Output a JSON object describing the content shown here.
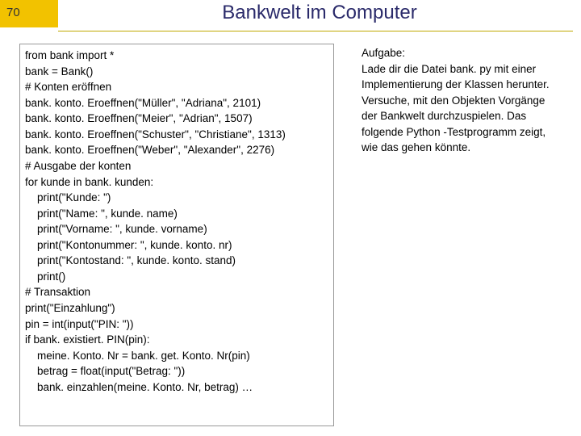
{
  "slide": {
    "number": "70",
    "title": "Bankwelt im Computer"
  },
  "code": {
    "lines": [
      "from bank import *",
      "bank = Bank()",
      "# Konten eröffnen",
      "bank. konto. Eroeffnen(\"Müller\", \"Adriana\", 2101)",
      "bank. konto. Eroeffnen(\"Meier\", \"Adrian\", 1507)",
      "bank. konto. Eroeffnen(\"Schuster\", \"Christiane\", 1313)",
      "bank. konto. Eroeffnen(\"Weber\", \"Alexander\", 2276)",
      "# Ausgabe der konten",
      "for kunde in bank. kunden:",
      "    print(\"Kunde: \")",
      "    print(\"Name: \", kunde. name)",
      "    print(\"Vorname: \", kunde. vorname)",
      "    print(\"Kontonummer: \", kunde. konto. nr)",
      "    print(\"Kontostand: \", kunde. konto. stand)",
      "    print()",
      "# Transaktion",
      "print(\"Einzahlung\")",
      "pin = int(input(\"PIN: \"))",
      "if bank. existiert. PIN(pin):",
      "    meine. Konto. Nr = bank. get. Konto. Nr(pin)",
      "    betrag = float(input(\"Betrag: \"))",
      "    bank. einzahlen(meine. Konto. Nr, betrag) …"
    ]
  },
  "task": {
    "heading": "Aufgabe:",
    "body": "Lade dir die Datei bank. py mit einer Implementierung der Klassen herunter. Versuche, mit den Objekten Vorgänge der Bankwelt durchzuspielen. Das folgende Python -Testprogramm zeigt, wie das gehen könnte."
  },
  "style": {
    "accent_color": "#f2c200",
    "title_color": "#2a2a6a",
    "border_color": "#999999",
    "text_color": "#000000",
    "background_color": "#ffffff",
    "code_fontsize": 13.5,
    "title_fontsize": 24
  }
}
